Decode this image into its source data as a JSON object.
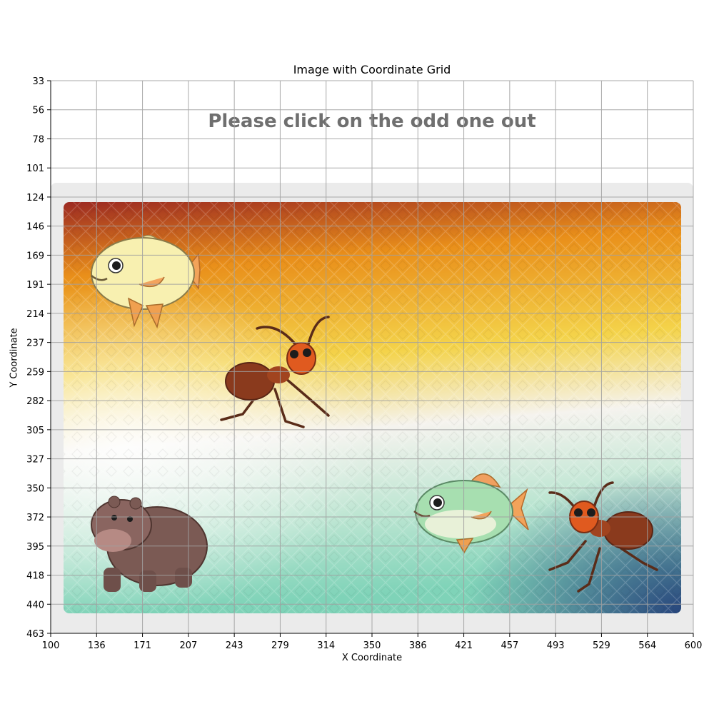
{
  "figure": {
    "title": "Image with Coordinate Grid",
    "xlabel": "X Coordinate",
    "ylabel": "Y Coordinate",
    "x_ticks": [
      "100",
      "136",
      "171",
      "207",
      "243",
      "279",
      "314",
      "350",
      "386",
      "421",
      "457",
      "493",
      "529",
      "564",
      "600"
    ],
    "y_ticks": [
      "33",
      "56",
      "78",
      "101",
      "124",
      "146",
      "169",
      "191",
      "214",
      "237",
      "259",
      "282",
      "305",
      "327",
      "350",
      "372",
      "395",
      "418",
      "440",
      "463"
    ]
  },
  "captcha": {
    "instruction": "Please click on the odd one out",
    "items": [
      {
        "name": "fish",
        "icon": "fish-icon"
      },
      {
        "name": "ant",
        "icon": "ant-icon"
      },
      {
        "name": "hippo",
        "icon": "hippo-icon"
      },
      {
        "name": "fish",
        "icon": "fish-icon"
      },
      {
        "name": "ant",
        "icon": "ant-icon"
      }
    ]
  },
  "colors": {
    "panel": "#ebebeb",
    "grid": "#a0a0a0",
    "instruction_text": "#6f6f6f",
    "bg_dark_red": "#9c2a22",
    "bg_orange": "#e98f1a",
    "bg_yellow": "#f4d34a",
    "bg_white": "#f5f3ee",
    "bg_teal": "#7fd3b8",
    "bg_navy": "#27457c"
  }
}
